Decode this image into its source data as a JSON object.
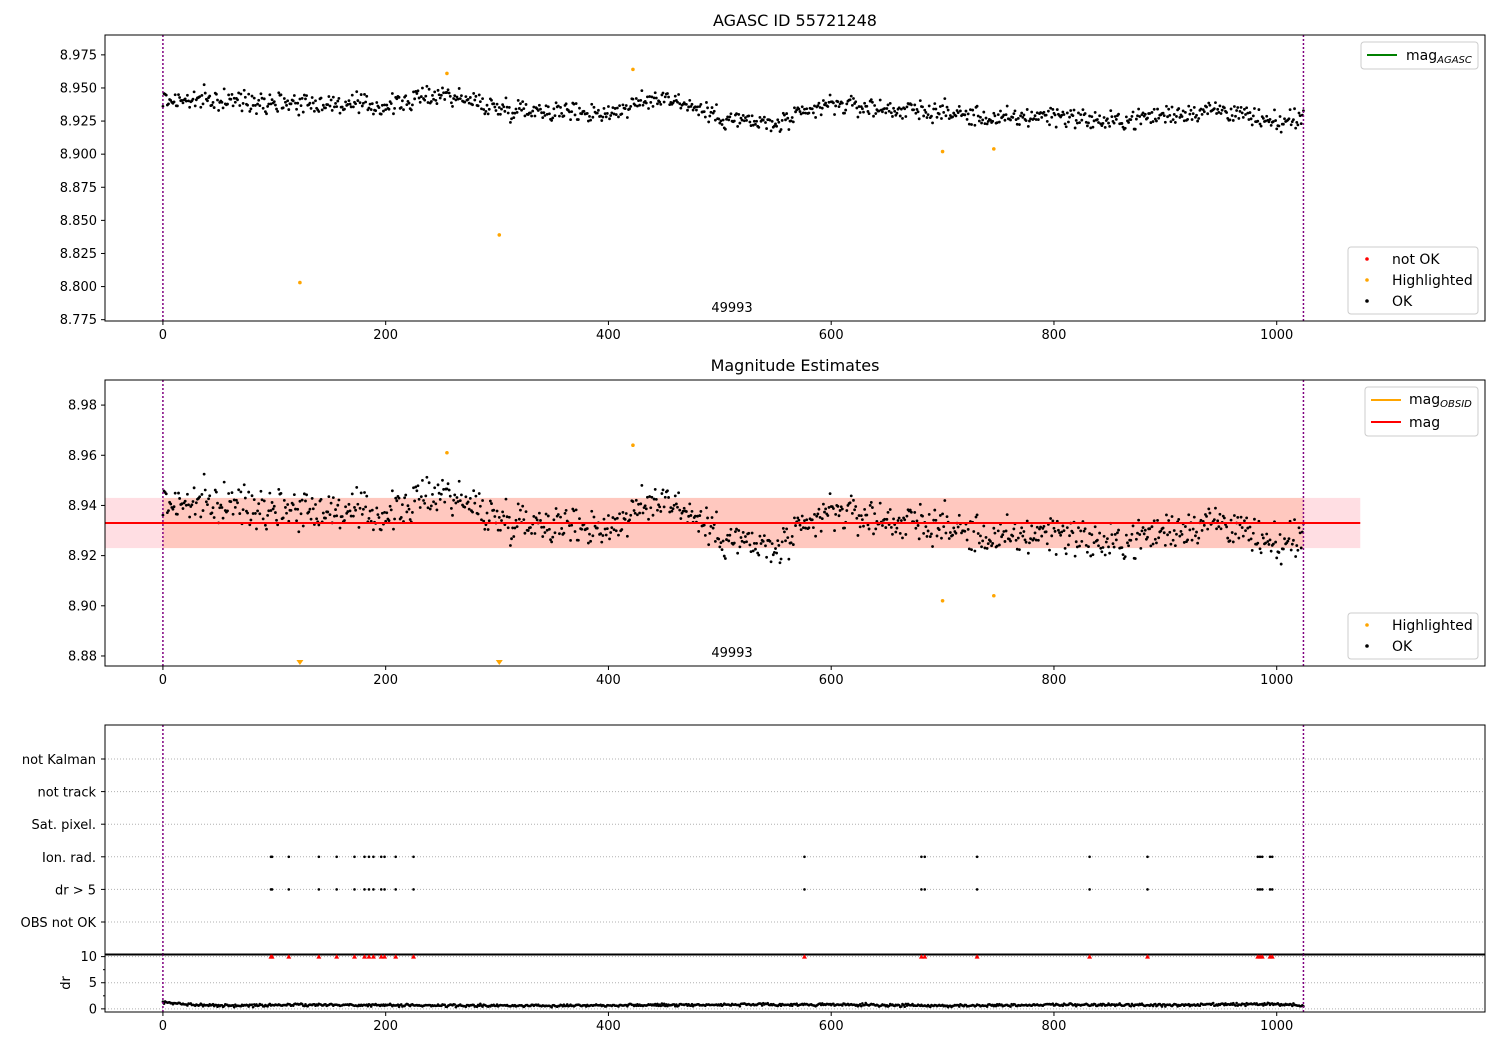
{
  "chart_data": [
    {
      "type": "scatter",
      "title": "AGASC ID 55721248",
      "xlim": [
        -52,
        1187
      ],
      "ylim": [
        8.774,
        8.99
      ],
      "xticks": [
        "0",
        "200",
        "400",
        "600",
        "800",
        "1000"
      ],
      "yticks": [
        "8.775",
        "8.800",
        "8.825",
        "8.850",
        "8.875",
        "8.900",
        "8.925",
        "8.950",
        "8.975"
      ],
      "obsid_label": "49993",
      "vlines_x": [
        0,
        1024
      ],
      "legend_top": [
        "mag_AGASC"
      ],
      "legend_bottom": [
        "not OK",
        "Highlighted",
        "OK"
      ],
      "series": [
        {
          "name": "Highlighted",
          "points": [
            [
              123,
              8.803
            ],
            [
              255,
              8.961
            ],
            [
              302,
              8.839
            ],
            [
              422,
              8.964
            ],
            [
              700,
              8.902
            ],
            [
              746,
              8.904
            ]
          ]
        },
        {
          "name": "not OK",
          "points": []
        }
      ],
      "ok_trend": [
        [
          0,
          8.941
        ],
        [
          100,
          8.94
        ],
        [
          200,
          8.936
        ],
        [
          250,
          8.946
        ],
        [
          300,
          8.935
        ],
        [
          400,
          8.931
        ],
        [
          450,
          8.944
        ],
        [
          500,
          8.928
        ],
        [
          550,
          8.922
        ],
        [
          600,
          8.938
        ],
        [
          650,
          8.934
        ],
        [
          700,
          8.932
        ],
        [
          750,
          8.926
        ],
        [
          800,
          8.93
        ],
        [
          850,
          8.924
        ],
        [
          900,
          8.93
        ],
        [
          950,
          8.934
        ],
        [
          1000,
          8.922
        ],
        [
          1025,
          8.93
        ]
      ]
    },
    {
      "type": "scatter",
      "title": "Magnitude Estimates",
      "xlim": [
        -52,
        1187
      ],
      "ylim": [
        8.876,
        8.99
      ],
      "xticks": [
        "0",
        "200",
        "400",
        "600",
        "800",
        "1000"
      ],
      "yticks": [
        "8.88",
        "8.90",
        "8.92",
        "8.94",
        "8.96",
        "8.98"
      ],
      "obsid_label": "49993",
      "vlines_x": [
        0,
        1024
      ],
      "mag": 8.933,
      "mag_band": [
        8.923,
        8.943
      ],
      "band_xrange": [
        -52,
        1075
      ],
      "legend_top": [
        "mag_OBSID",
        "mag"
      ],
      "legend_bottom": [
        "Highlighted",
        "OK"
      ],
      "series": [
        {
          "name": "Highlighted",
          "points": [
            [
              255,
              8.961
            ],
            [
              422,
              8.964
            ],
            [
              700,
              8.902
            ],
            [
              746,
              8.904
            ]
          ]
        }
      ],
      "out_of_range_markers_x": [
        123,
        302
      ],
      "ok_trend": [
        [
          0,
          8.941
        ],
        [
          100,
          8.94
        ],
        [
          200,
          8.936
        ],
        [
          250,
          8.946
        ],
        [
          300,
          8.935
        ],
        [
          400,
          8.931
        ],
        [
          450,
          8.944
        ],
        [
          500,
          8.928
        ],
        [
          550,
          8.922
        ],
        [
          600,
          8.938
        ],
        [
          650,
          8.934
        ],
        [
          700,
          8.932
        ],
        [
          750,
          8.926
        ],
        [
          800,
          8.93
        ],
        [
          850,
          8.924
        ],
        [
          900,
          8.93
        ],
        [
          950,
          8.934
        ],
        [
          1000,
          8.922
        ],
        [
          1025,
          8.93
        ]
      ]
    },
    {
      "type": "scatter",
      "categories": [
        "not Kalman",
        "not track",
        "Sat. pixel.",
        "Ion. rad.",
        "dr > 5",
        "OBS not OK"
      ],
      "flag_x": [
        97,
        98,
        113,
        140,
        156,
        172,
        181,
        185,
        189,
        196,
        199,
        209,
        225,
        576,
        681,
        684,
        731,
        832,
        884,
        983,
        985,
        987,
        994,
        996
      ],
      "flagged_rows": [
        "Ion. rad.",
        "dr > 5"
      ],
      "xlim": [
        -52,
        1187
      ],
      "vlines_x": [
        0,
        1024
      ]
    },
    {
      "type": "scatter",
      "ylabel": "dr",
      "ylim": [
        -0.6,
        10.5
      ],
      "yticks": [
        "0",
        "5",
        "10"
      ],
      "xticks": [
        "0",
        "200",
        "400",
        "600",
        "800",
        "1000"
      ],
      "xlim": [
        -52,
        1187
      ],
      "vlines_x": [
        0,
        1024
      ],
      "high_dr_value": 10,
      "high_dr_x": [
        97,
        98,
        113,
        140,
        156,
        172,
        181,
        185,
        189,
        196,
        199,
        209,
        225,
        576,
        681,
        684,
        731,
        832,
        884,
        983,
        985,
        987,
        994,
        996
      ],
      "dr_trend": [
        [
          0,
          1.2
        ],
        [
          20,
          0.9
        ],
        [
          60,
          0.6
        ],
        [
          120,
          0.8
        ],
        [
          200,
          0.7
        ],
        [
          300,
          0.6
        ],
        [
          400,
          0.7
        ],
        [
          500,
          0.8
        ],
        [
          600,
          0.8
        ],
        [
          700,
          0.6
        ],
        [
          800,
          0.8
        ],
        [
          900,
          0.7
        ],
        [
          1000,
          0.9
        ],
        [
          1025,
          0.6
        ]
      ]
    }
  ],
  "colors": {
    "ok": "#000000",
    "highlighted": "#ffa500",
    "not_ok": "#ff0000",
    "agasc_line": "#008000",
    "obsid_line": "#ffa500",
    "mag_line": "#ff0000",
    "band_pink": "#ffb6c1",
    "band_orange": "#ffa07a",
    "vline": "#800080",
    "grid": "#b0b0b0"
  }
}
